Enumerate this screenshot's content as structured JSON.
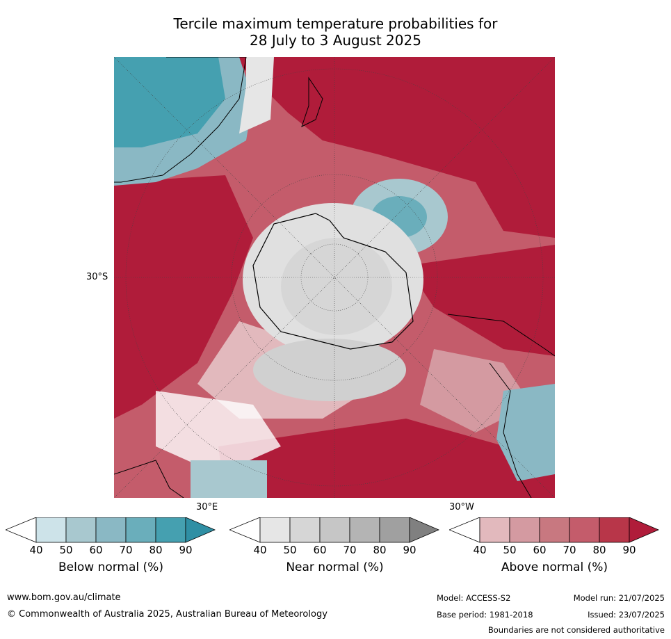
{
  "title_line1": "Tercile maximum temperature probabilities for",
  "title_line2": "28 July to 3 August 2025",
  "map_labels": {
    "lat_30s": "30°S",
    "lon_30e": "30°E",
    "lon_30w": "30°W"
  },
  "colorbars": [
    {
      "label": "Below normal (%)",
      "ticks": [
        "40",
        "50",
        "60",
        "70",
        "80",
        "90"
      ],
      "colors": [
        "#ffffff",
        "#cde3e9",
        "#a8c8cf",
        "#8ab8c4",
        "#6aaebb",
        "#45a0b0",
        "#2f8fa4"
      ]
    },
    {
      "label": "Near normal (%)",
      "ticks": [
        "40",
        "50",
        "60",
        "70",
        "80",
        "90"
      ],
      "colors": [
        "#ffffff",
        "#e6e6e6",
        "#d6d6d6",
        "#c6c6c6",
        "#b4b4b4",
        "#a0a0a0",
        "#808080"
      ]
    },
    {
      "label": "Above normal (%)",
      "ticks": [
        "40",
        "50",
        "60",
        "70",
        "80",
        "90"
      ],
      "colors": [
        "#ffffff",
        "#e2b9bd",
        "#d49aa1",
        "#c87880",
        "#c45c6b",
        "#b83649",
        "#b01c3a"
      ]
    }
  ],
  "footer": {
    "url": "www.bom.gov.au/climate",
    "copyright": "© Commonwealth of Australia 2025, Australian Bureau of Meteorology",
    "model": "Model: ACCESS-S2",
    "base_period": "Base period: 1981-2018",
    "model_run": "Model run: 21/07/2025",
    "issued": "Issued: 23/07/2025",
    "disclaimer": "Boundaries are not considered authoritative"
  },
  "palette": {
    "above_dark": "#b01c3a",
    "above_mid": "#c45c6b",
    "above_light": "#e2b9bd",
    "below_dark": "#2f8fa4",
    "below_light": "#cde3e9",
    "near_light": "#e0e0e0"
  }
}
